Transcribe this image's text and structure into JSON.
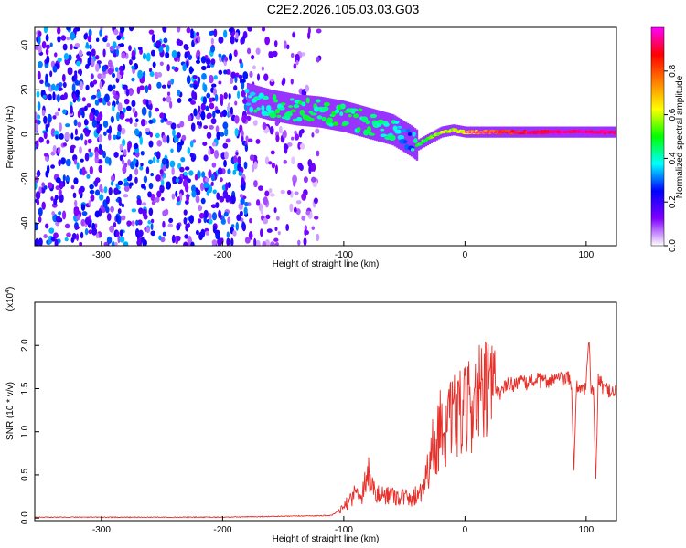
{
  "title": "C2E2.2026.105.03.03.G03",
  "colors": {
    "snr_line": "#e8302a",
    "frame": "#000000"
  },
  "chart_data": [
    {
      "type": "heatmap",
      "xlabel": "Height of straight line (km)",
      "ylabel": "Frequency (Hz)",
      "xlim": [
        -355,
        125
      ],
      "ylim": [
        -50,
        48
      ],
      "xticks": [
        -300,
        -200,
        -100,
        0,
        100
      ],
      "xticklabels": [
        "-300",
        "-200",
        "-100",
        "0",
        "100"
      ],
      "yticks": [
        -40,
        -20,
        0,
        20,
        40
      ],
      "yticklabels": [
        "-40",
        "-20",
        "0",
        "20",
        "40"
      ],
      "grid": false,
      "colorbar": {
        "label": "Normalized spectral amplitude",
        "range": [
          0,
          1
        ],
        "ticks": [
          0.0,
          0.2,
          0.4,
          0.6,
          0.8
        ],
        "ticklabels": [
          "0.0",
          "0.2",
          "0.4",
          "0.6",
          "0.8"
        ],
        "colormap": [
          "#ffffff",
          "#8000ff",
          "#0000ff",
          "#00ffff",
          "#00ff00",
          "#ffff00",
          "#ff8000",
          "#ff0000",
          "#ff00ff"
        ]
      },
      "noise_region": {
        "x": [
          -355,
          -120
        ],
        "amplitude": [
          0.05,
          0.35
        ]
      },
      "signal_track": {
        "x": [
          -180,
          -160,
          -140,
          -120,
          -100,
          -80,
          -60,
          -45,
          -40,
          -30,
          -20,
          -10,
          0,
          20,
          40,
          60,
          80,
          100,
          125
        ],
        "frequency": [
          16,
          13,
          11,
          10,
          8,
          5,
          2,
          -3,
          -5,
          -2,
          1,
          2,
          1,
          1,
          1,
          1,
          1,
          1,
          1
        ],
        "amplitude": [
          0.4,
          0.42,
          0.45,
          0.45,
          0.45,
          0.45,
          0.4,
          0.3,
          0.5,
          0.5,
          0.6,
          0.6,
          0.65,
          0.75,
          0.85,
          0.9,
          0.95,
          0.95,
          0.95
        ]
      }
    },
    {
      "type": "line",
      "xlabel": "Height of straight line (km)",
      "ylabel": "SNR (10 * v/v)",
      "yscale_label": "(x10",
      "yscale_exp": "4",
      "y_multiplier": 10000,
      "xlim": [
        -355,
        125
      ],
      "ylim": [
        -0.03,
        2.5
      ],
      "xticks": [
        -300,
        -200,
        -100,
        0,
        100
      ],
      "xticklabels": [
        "-300",
        "-200",
        "-100",
        "0",
        "100"
      ],
      "yticks": [
        0.0,
        0.5,
        1.0,
        1.5,
        2.0
      ],
      "yticklabels": [
        "0.0",
        "0.5",
        "1.0",
        "1.5",
        "2.0"
      ],
      "grid": false,
      "series": [
        {
          "x": [
            -355,
            -300,
            -250,
            -200,
            -150,
            -110,
            -100,
            -95,
            -90,
            -85,
            -80,
            -75,
            -70,
            -65,
            -60,
            -55,
            -50,
            -45,
            -40,
            -35,
            -32,
            -30,
            -28,
            -25,
            -20,
            -15,
            -10,
            -5,
            0,
            5,
            10,
            15,
            20,
            25,
            30,
            35,
            40,
            45,
            50,
            55,
            60,
            65,
            70,
            75,
            80,
            85,
            88,
            90,
            92,
            95,
            100,
            102,
            104,
            106,
            108,
            110,
            115,
            120,
            125
          ],
          "values": [
            0.01,
            0.01,
            0.01,
            0.01,
            0.02,
            0.03,
            0.12,
            0.22,
            0.3,
            0.28,
            0.55,
            0.3,
            0.25,
            0.28,
            0.27,
            0.25,
            0.25,
            0.2,
            0.28,
            0.35,
            0.5,
            0.6,
            0.85,
            0.75,
            1.1,
            1.0,
            1.15,
            1.2,
            1.2,
            1.35,
            1.4,
            1.4,
            1.45,
            1.5,
            1.45,
            1.55,
            1.55,
            1.6,
            1.55,
            1.6,
            1.6,
            1.58,
            1.6,
            1.62,
            1.6,
            1.62,
            1.55,
            0.5,
            1.55,
            1.5,
            1.52,
            2.1,
            1.5,
            1.45,
            0.45,
            1.6,
            1.5,
            1.48,
            1.48
          ]
        }
      ]
    }
  ]
}
